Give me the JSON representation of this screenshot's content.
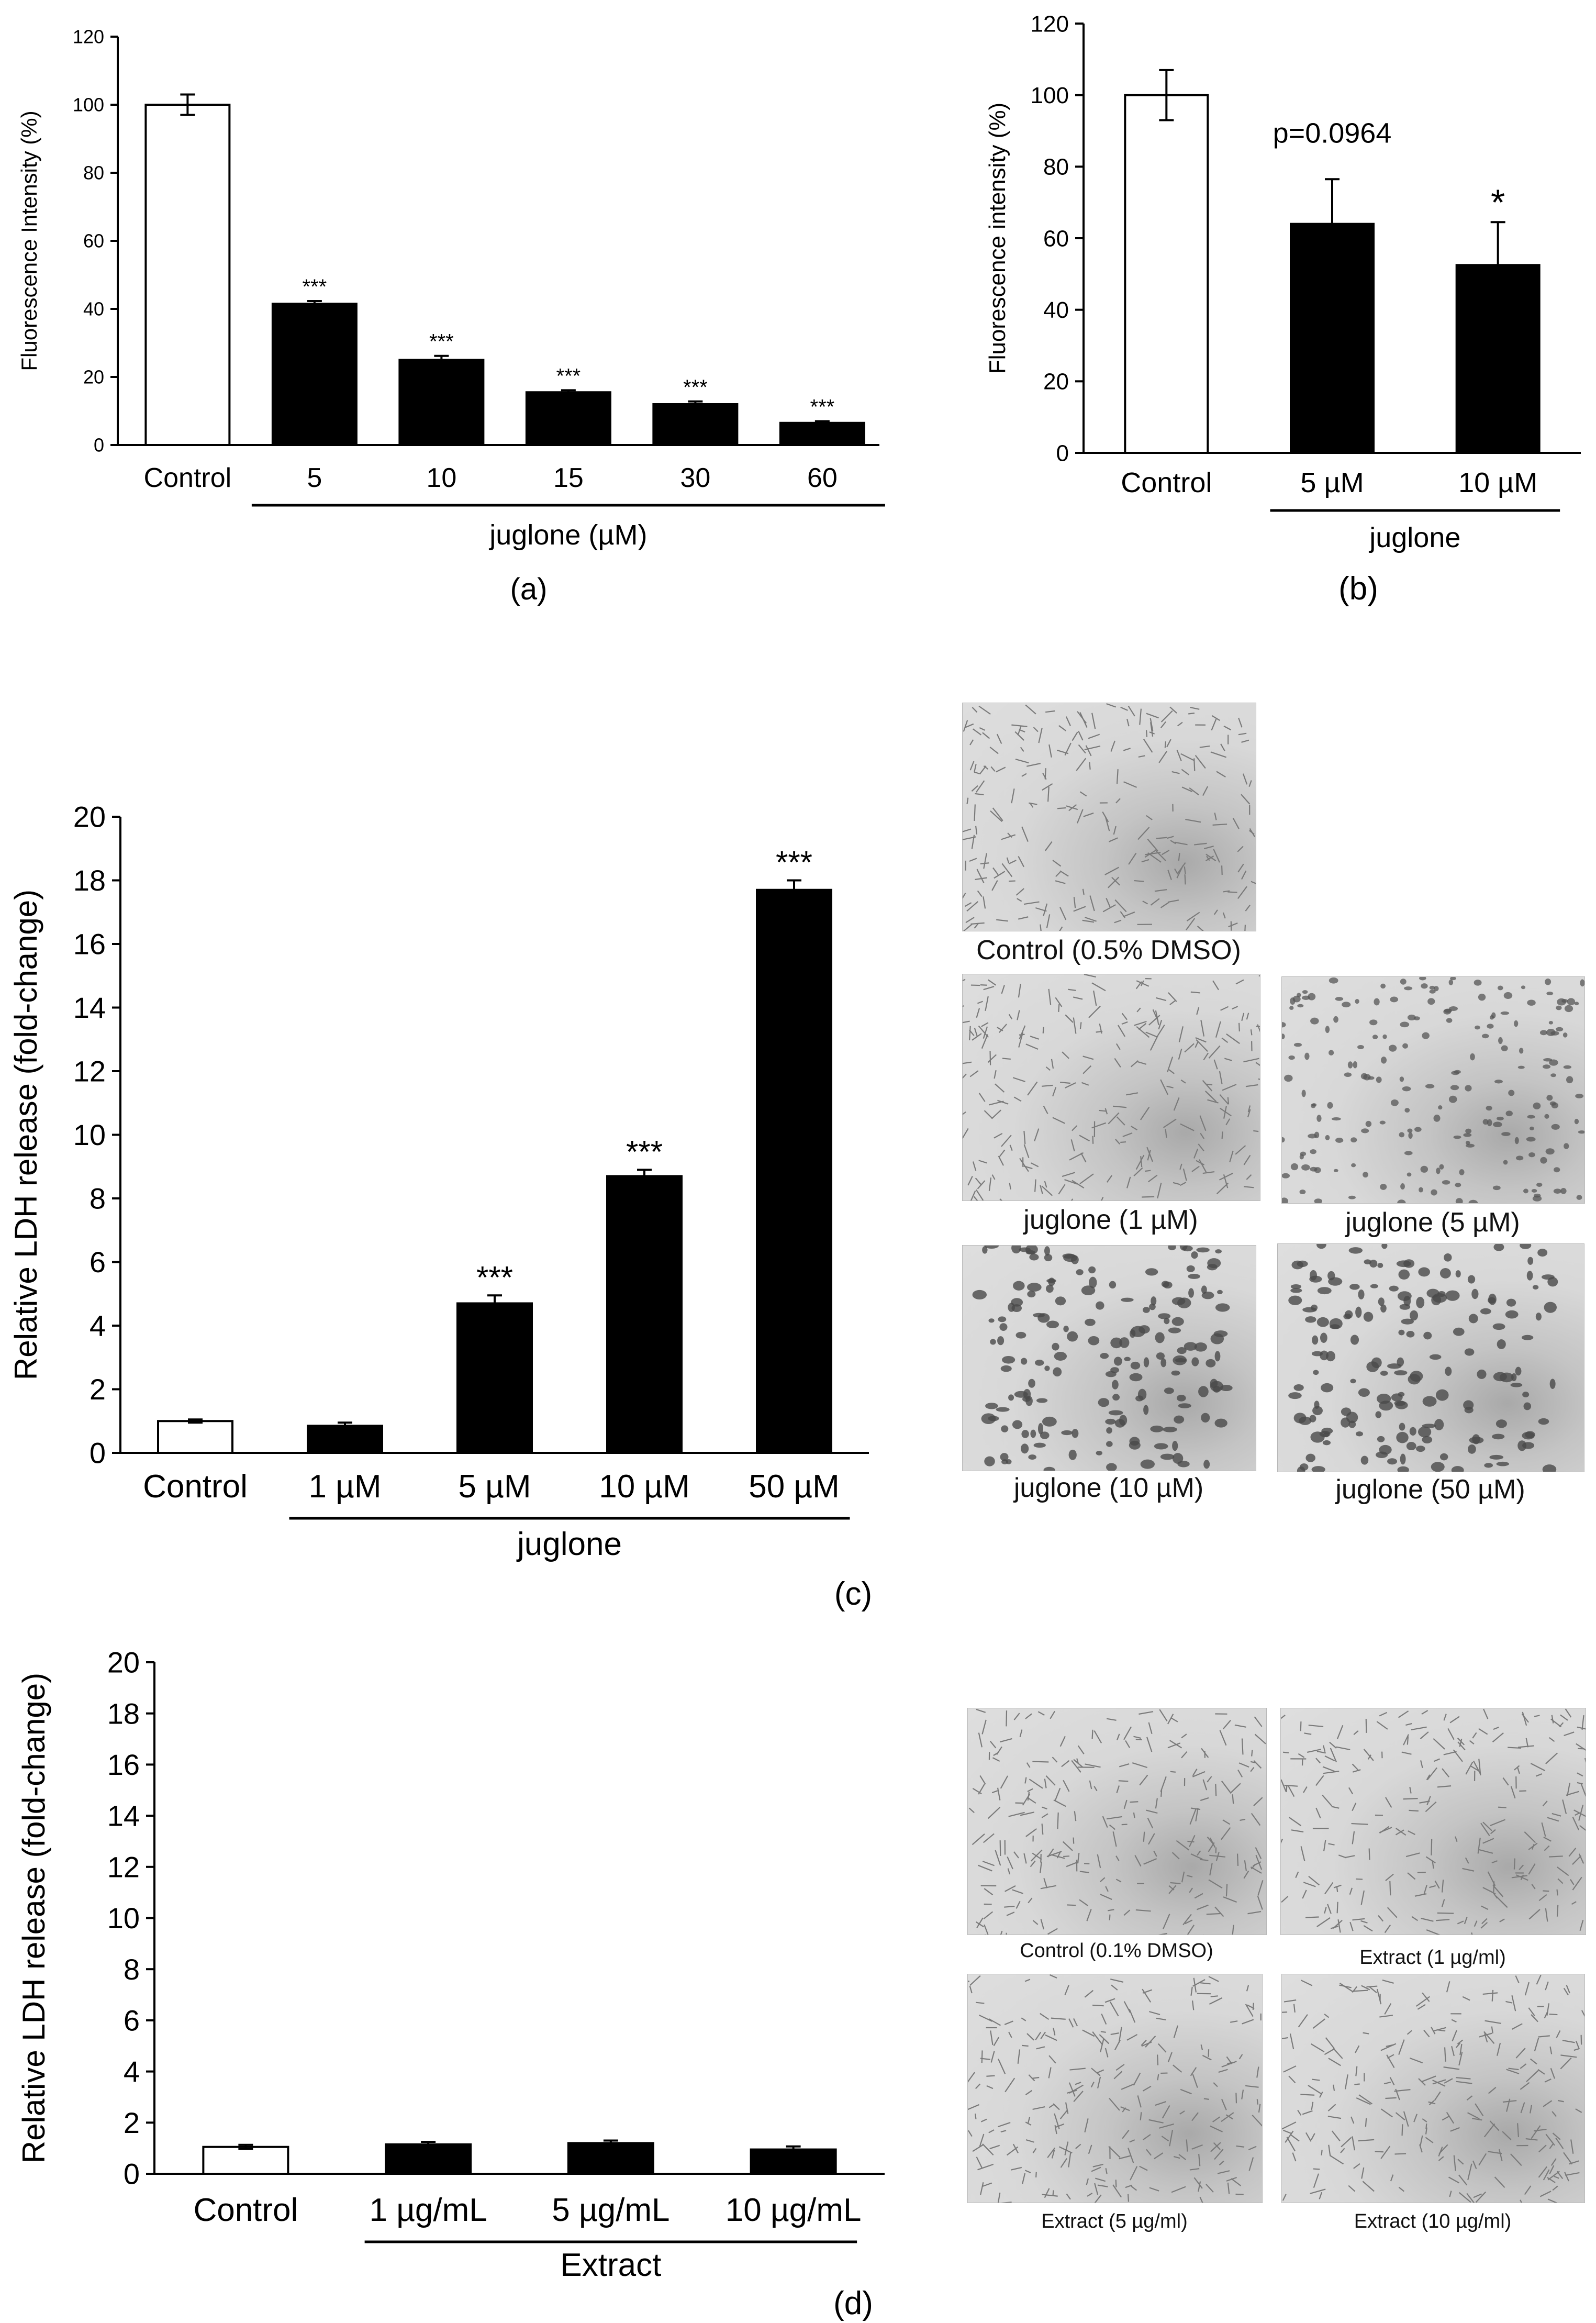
{
  "panels": [
    {
      "id": "a",
      "chart_data": {
        "type": "bar",
        "categories": [
          "Control",
          "5",
          "10",
          "15",
          "30",
          "60"
        ],
        "values": [
          100,
          41.5,
          25,
          15.5,
          12,
          6.5
        ],
        "errors": [
          3,
          0.8,
          1.2,
          0.6,
          0.8,
          0.5
        ],
        "bar_fill": [
          "white",
          "black",
          "black",
          "black",
          "black",
          "black"
        ],
        "annotations": [
          "",
          "***",
          "***",
          "***",
          "***",
          "***"
        ],
        "ylabel": "Fluorescence  Intensity (%)",
        "ylim": [
          0,
          120
        ],
        "yticks": [
          0,
          20,
          40,
          60,
          80,
          100,
          120
        ],
        "group_label": "juglone (µM)",
        "panel_label": "(a)",
        "p_label": ""
      }
    },
    {
      "id": "b",
      "chart_data": {
        "type": "bar",
        "categories": [
          "Control",
          "5 µM",
          "10 µM"
        ],
        "values": [
          100,
          64,
          52.5
        ],
        "errors": [
          7,
          12.5,
          12
        ],
        "bar_fill": [
          "white",
          "black",
          "black"
        ],
        "annotations": [
          "",
          "",
          "*"
        ],
        "ylabel": "Fluorescence intensity (%)",
        "ylim": [
          0,
          120
        ],
        "yticks": [
          0,
          20,
          40,
          60,
          80,
          100,
          120
        ],
        "group_label": "juglone",
        "panel_label": "(b)",
        "p_label": "p=0.0964"
      }
    },
    {
      "id": "c",
      "chart_data": {
        "type": "bar",
        "categories": [
          "Control",
          "1 µM",
          "5 µM",
          "10 µM",
          "50 µM"
        ],
        "values": [
          1.0,
          0.85,
          4.7,
          8.7,
          17.7
        ],
        "errors": [
          0.05,
          0.1,
          0.25,
          0.2,
          0.3
        ],
        "bar_fill": [
          "white",
          "black",
          "black",
          "black",
          "black"
        ],
        "annotations": [
          "",
          "",
          "***",
          "***",
          "***"
        ],
        "ylabel": "Relative LDH release (fold-change)",
        "ylim": [
          0,
          20
        ],
        "yticks": [
          0,
          2,
          4,
          6,
          8,
          10,
          12,
          14,
          16,
          18,
          20
        ],
        "group_label": "juglone",
        "panel_label": "(c)",
        "p_label": ""
      }
    },
    {
      "id": "d",
      "chart_data": {
        "type": "bar",
        "categories": [
          "Control",
          "1 µg/mL",
          "5 µg/mL",
          "10 µg/mL"
        ],
        "values": [
          1.05,
          1.15,
          1.2,
          0.95
        ],
        "errors": [
          0.08,
          0.1,
          0.1,
          0.12
        ],
        "bar_fill": [
          "white",
          "black",
          "black",
          "black"
        ],
        "annotations": [
          "",
          "",
          "",
          ""
        ],
        "ylabel": "Relative LDH release (fold-change)",
        "ylim": [
          0,
          20
        ],
        "yticks": [
          0,
          2,
          4,
          6,
          8,
          10,
          12,
          14,
          16,
          18,
          20
        ],
        "group_label": "Extract",
        "panel_label": "(d)",
        "p_label": ""
      }
    }
  ],
  "micrographs_c": [
    {
      "caption": "Control (0.5% DMSO)",
      "density": "dense"
    },
    {
      "caption": "juglone (1 µM)",
      "density": "dense"
    },
    {
      "caption": "juglone (5 µM)",
      "density": "sparse"
    },
    {
      "caption": "juglone (10 µM)",
      "density": "clumped"
    },
    {
      "caption": "juglone (50 µM)",
      "density": "clumped"
    }
  ],
  "micrographs_d": [
    {
      "caption": "Control (0.1% DMSO)",
      "density": "dense"
    },
    {
      "caption": "Extract (1 µg/ml)",
      "density": "dense"
    },
    {
      "caption": "Extract (5 µg/ml)",
      "density": "dense"
    },
    {
      "caption": "Extract (10 µg/ml)",
      "density": "dense"
    }
  ]
}
